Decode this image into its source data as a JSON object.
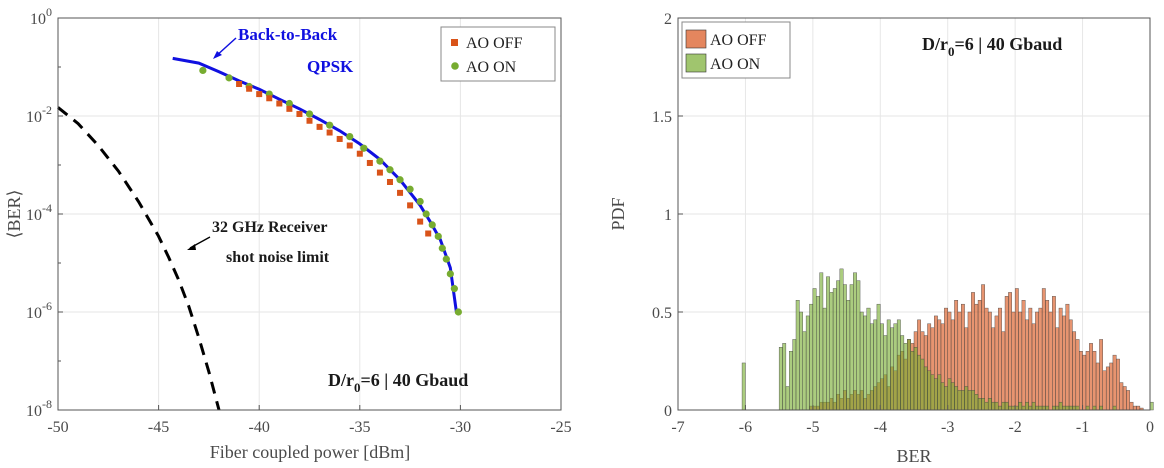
{
  "chart_data": [
    {
      "type": "scatter",
      "xlabel": "Fiber coupled power [dBm]",
      "ylabel": "⟨BER⟩",
      "xlim": [
        -50,
        -25
      ],
      "ylim": [
        1e-08,
        1
      ],
      "yscale": "log",
      "grid": true,
      "x_ticks": [
        "-50",
        "-45",
        "-40",
        "-35",
        "-30",
        "-25"
      ],
      "y_ticks": [
        {
          "base": "10",
          "exp": "0"
        },
        {
          "base": "10",
          "exp": "-2"
        },
        {
          "base": "10",
          "exp": "-4"
        },
        {
          "base": "10",
          "exp": "-6"
        },
        {
          "base": "10",
          "exp": "-8"
        }
      ],
      "legend_position": "top-right",
      "series": [
        {
          "name": "AO OFF",
          "color": "#d95319",
          "marker": "square",
          "x": [
            -41.0,
            -40.5,
            -40.0,
            -39.5,
            -39.0,
            -38.5,
            -38.0,
            -37.5,
            -37.0,
            -36.5,
            -36.0,
            -35.5,
            -35.0,
            -34.5,
            -34.0,
            -33.5,
            -33.0,
            -32.5,
            -32.0,
            -31.6
          ],
          "y": [
            0.045,
            0.036,
            0.028,
            0.023,
            0.018,
            0.014,
            0.011,
            0.008,
            0.006,
            0.0046,
            0.0034,
            0.0025,
            0.0017,
            0.0011,
            0.0007,
            0.00045,
            0.00027,
            0.00015,
            7e-05,
            4e-05
          ]
        },
        {
          "name": "AO ON",
          "color": "#77ac30",
          "marker": "circle",
          "x": [
            -42.8,
            -41.5,
            -40.5,
            -39.5,
            -38.5,
            -37.5,
            -36.5,
            -35.5,
            -34.8,
            -34.0,
            -33.5,
            -33.0,
            -32.5,
            -32.0,
            -31.7,
            -31.4,
            -31.1,
            -30.9,
            -30.7,
            -30.5,
            -30.3,
            -30.1
          ],
          "y": [
            0.085,
            0.06,
            0.04,
            0.028,
            0.018,
            0.011,
            0.0065,
            0.0038,
            0.0022,
            0.0012,
            0.0008,
            0.0005,
            0.00032,
            0.00018,
            0.0001,
            6e-05,
            3.5e-05,
            2e-05,
            1.2e-05,
            6e-06,
            3e-06,
            1e-06
          ]
        }
      ],
      "lines": [
        {
          "name": "Back-to-Back QPSK",
          "color": "#1010e0",
          "style": "solid",
          "x": [
            -44.3,
            -43,
            -42,
            -41,
            -40,
            -39,
            -38,
            -37,
            -36,
            -35,
            -34,
            -33,
            -32,
            -31.5,
            -31,
            -30.5,
            -30.2
          ],
          "y": [
            0.15,
            0.12,
            0.08,
            0.052,
            0.035,
            0.022,
            0.014,
            0.0085,
            0.005,
            0.0027,
            0.0013,
            0.0005,
            0.00015,
            7e-05,
            3e-05,
            8e-06,
            1e-06
          ]
        },
        {
          "name": "32 GHz Receiver shot noise limit",
          "color": "#000000",
          "style": "dashed",
          "x": [
            -50,
            -49,
            -48,
            -47,
            -46,
            -45,
            -44.5,
            -44,
            -43.5,
            -43,
            -42.5,
            -42
          ],
          "y": [
            0.015,
            0.007,
            0.0025,
            0.00075,
            0.00018,
            3.5e-05,
            1.3e-05,
            4.5e-06,
            1.3e-06,
            3e-07,
            6e-08,
            1e-08
          ]
        }
      ],
      "annotations": [
        {
          "lines": [
            "Back-to-Back",
            "QPSK"
          ],
          "color": "#1010e0"
        },
        {
          "lines": [
            "32 GHz Receiver",
            "shot noise limit"
          ],
          "color": "#1a1a1a"
        },
        {
          "main": "D/r",
          "sub": "0",
          "rest": "=6  |  40 Gbaud",
          "color": "#1a1a1a"
        }
      ]
    },
    {
      "type": "bar",
      "subtype": "histogram",
      "xlabel": "BER",
      "ylabel": "PDF",
      "xlim": [
        -7,
        0
      ],
      "ylim": [
        0,
        2
      ],
      "grid": true,
      "x_ticks": [
        "-7",
        "-6",
        "-5",
        "-4",
        "-3",
        "-2",
        "-1",
        "0"
      ],
      "y_ticks": [
        "0",
        "0.5",
        "1",
        "1.5",
        "2"
      ],
      "legend_position": "top-left",
      "bin_start": -6.05,
      "bin_width": 0.05,
      "series": [
        {
          "name": "AO OFF",
          "color": "#d95319",
          "values": [
            0,
            0,
            0,
            0,
            0,
            0,
            0,
            0,
            0,
            0,
            0,
            0,
            0,
            0,
            0,
            0,
            0,
            0,
            0,
            0,
            0.02,
            0.02,
            0.02,
            0.04,
            0.04,
            0.04,
            0.06,
            0.04,
            0.08,
            0.06,
            0.1,
            0.06,
            0.08,
            0.1,
            0.08,
            0.1,
            0.06,
            0.08,
            0.1,
            0.12,
            0.14,
            0.16,
            0.18,
            0.12,
            0.22,
            0.2,
            0.28,
            0.3,
            0.26,
            0.36,
            0.34,
            0.4,
            0.46,
            0.4,
            0.38,
            0.44,
            0.42,
            0.48,
            0.46,
            0.44,
            0.52,
            0.5,
            0.46,
            0.56,
            0.5,
            0.54,
            0.42,
            0.5,
            0.6,
            0.54,
            0.56,
            0.64,
            0.52,
            0.5,
            0.42,
            0.48,
            0.52,
            0.4,
            0.58,
            0.6,
            0.5,
            0.62,
            0.5,
            0.56,
            0.46,
            0.52,
            0.44,
            0.5,
            0.52,
            0.62,
            0.56,
            0.5,
            0.58,
            0.42,
            0.52,
            0.48,
            0.54,
            0.46,
            0.4,
            0.36,
            0.3,
            0.28,
            0.3,
            0.34,
            0.3,
            0.24,
            0.36,
            0.2,
            0.22,
            0.24,
            0.28,
            0.26,
            0.14,
            0.12,
            0.1,
            0.04,
            0.02,
            0.02,
            0.01,
            0,
            0,
            0,
            0,
            0,
            0,
            0,
            0,
            0,
            0
          ]
        },
        {
          "name": "AO ON",
          "color": "#77ac30",
          "values": [
            0.24,
            0,
            0,
            0,
            0,
            0,
            0,
            0,
            0,
            0,
            0,
            0.32,
            0.34,
            0.12,
            0.3,
            0.36,
            0.56,
            0.5,
            0.4,
            0.48,
            0.54,
            0.62,
            0.58,
            0.7,
            0.52,
            0.68,
            0.6,
            0.62,
            0.66,
            0.72,
            0.64,
            0.56,
            0.64,
            0.7,
            0.66,
            0.5,
            0.48,
            0.52,
            0.44,
            0.46,
            0.54,
            0.44,
            0.38,
            0.46,
            0.42,
            0.44,
            0.46,
            0.38,
            0.34,
            0.36,
            0.3,
            0.32,
            0.28,
            0.26,
            0.22,
            0.2,
            0.18,
            0.16,
            0.18,
            0.14,
            0.12,
            0.16,
            0.14,
            0.12,
            0.1,
            0.1,
            0.12,
            0.1,
            0.1,
            0.08,
            0.06,
            0.06,
            0.04,
            0.06,
            0.04,
            0.04,
            0.02,
            0.04,
            0.04,
            0.02,
            0.02,
            0.02,
            0.04,
            0.02,
            0.04,
            0.02,
            0.04,
            0.02,
            0.02,
            0.02,
            0.02,
            0,
            0.02,
            0.02,
            0.04,
            0.02,
            0.02,
            0.02,
            0.02,
            0.02,
            0,
            0,
            0.02,
            0,
            0.02,
            0,
            0.02,
            0,
            0,
            0,
            0.02,
            0,
            0,
            0,
            0,
            0,
            0,
            0,
            0,
            0,
            0,
            0.04,
            0,
            0,
            0,
            0,
            0
          ]
        }
      ],
      "annotations": [
        {
          "main": "D/r",
          "sub": "0",
          "rest": "=6  |  40 Gbaud",
          "color": "#1a1a1a"
        }
      ]
    }
  ]
}
